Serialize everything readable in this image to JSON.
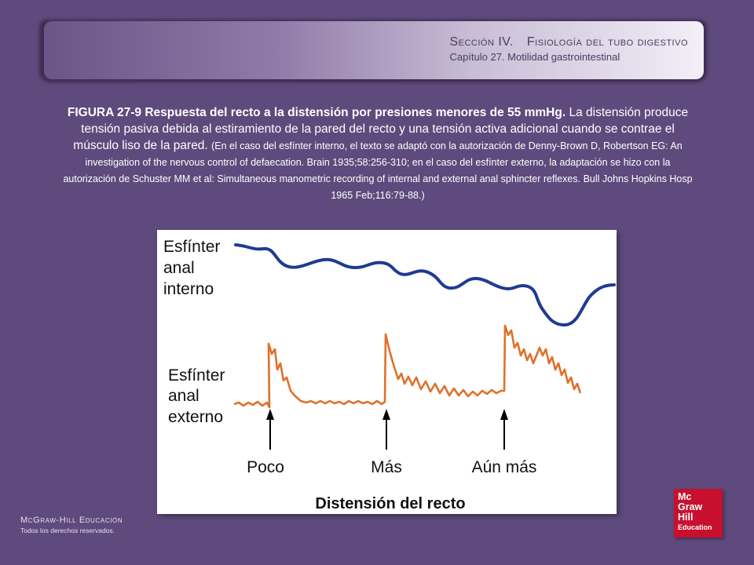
{
  "header": {
    "section": "Sección IV.",
    "topic": "Fisiología del tubo digestivo",
    "chapter": "Capítulo 27.  Motilidad gastrointestinal"
  },
  "caption": {
    "figure_title": "FIGURA 27-9 Respuesta del recto a la distensión por presiones menores de 55 mmHg.",
    "description": "La distensión produce tensión pasiva debida al estiramiento de la pared del recto y una tensión activa adicional cuando se contrae el músculo liso de la pared.",
    "credit": "(En el caso del esfínter interno, el texto se adaptó con la autorización de Denny-Brown D, Robertson EG: An investigation of the nervous control of defaecation. Brain 1935;58:256-310; en el caso del esfínter externo, la adaptación se hizo con la autorización de Schuster MM et al: Simultaneous manometric recording of internal and external anal sphincter reflexes. Bull Johns Hopkins Hosp 1965 Feb;116:79-88.)"
  },
  "figure": {
    "internal_label": [
      "Esfínter",
      "anal",
      "interno"
    ],
    "external_label": [
      "Esfínter",
      "anal",
      "externo"
    ],
    "markers": [
      "Poco",
      "Más",
      "Aún más"
    ],
    "xlabel": "Distensión del recto",
    "colors": {
      "internal": "#1f3a93",
      "external": "#e0702b",
      "arrow": "#000000"
    }
  },
  "footer": {
    "brand": "McGraw-Hill Educación",
    "rights": "Todos los derechos reservados."
  },
  "logo": {
    "line1": "Mc",
    "line2": "Graw",
    "line3": "Hill",
    "line4": "Education",
    "color": "#c8102e"
  }
}
